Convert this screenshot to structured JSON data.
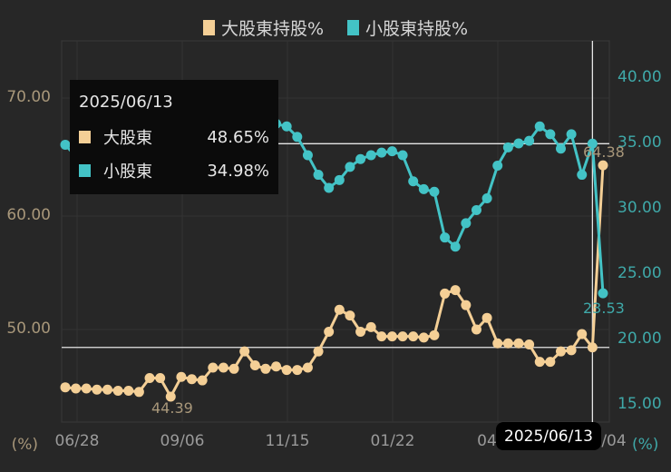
{
  "legend": {
    "items": [
      {
        "label": "大股東持股%",
        "color": "#f4cf96"
      },
      {
        "label": "小股東持股%",
        "color": "#43c3c6"
      }
    ]
  },
  "axes": {
    "left": {
      "ticks": [
        "70.00",
        "60.00",
        "50.00"
      ],
      "unit": "(%)",
      "color": "#a8977a"
    },
    "right": {
      "ticks": [
        "40.00",
        "35.00",
        "30.00",
        "25.00",
        "20.00",
        "15.00"
      ],
      "unit": "(%)",
      "color": "#3fa9a9"
    },
    "x": {
      "ticks": [
        "06/28",
        "09/06",
        "11/15",
        "01/22",
        "04",
        "/04"
      ]
    }
  },
  "tooltip": {
    "date": "2025/06/13",
    "rows": [
      {
        "label": "大股東",
        "value": "48.65%"
      },
      {
        "label": "小股東",
        "value": "34.98%"
      }
    ]
  },
  "crosshair": {
    "x_label": "2025/06/13"
  },
  "annotations": {
    "min_major": "44.39",
    "last_major": "64.38",
    "last_minor": "23.53"
  },
  "chart_data": {
    "type": "line",
    "title": "",
    "legend_position": "top",
    "x_ticks": [
      "06/28",
      "09/06",
      "11/15",
      "01/22",
      "04/..",
      "../04"
    ],
    "grid": true,
    "series": [
      {
        "name": "大股東持股%",
        "axis": "left",
        "ylim": [
          42,
          73
        ],
        "color": "#f4cf96",
        "values": [
          45.2,
          45.1,
          45.1,
          45.0,
          45.0,
          44.9,
          44.9,
          44.8,
          46.0,
          46.0,
          44.39,
          46.1,
          45.9,
          45.8,
          46.9,
          46.9,
          46.8,
          48.3,
          47.1,
          46.8,
          47.0,
          46.7,
          46.7,
          46.9,
          48.3,
          50.0,
          51.9,
          51.4,
          50.0,
          50.4,
          49.6,
          49.6,
          49.6,
          49.6,
          49.5,
          49.7,
          53.3,
          53.6,
          52.3,
          50.2,
          51.2,
          49.0,
          49.0,
          49.0,
          48.9,
          47.4,
          47.4,
          48.3,
          48.4,
          49.8,
          48.65,
          64.38
        ]
      },
      {
        "name": "小股東持股%",
        "axis": "right",
        "ylim": [
          13.5,
          41
        ],
        "color": "#43c3c6",
        "values": [
          34.9,
          34.0,
          34.7,
          35.3,
          35.8,
          36.3,
          35.9,
          36.3,
          36.6,
          36.8,
          35.6,
          34.6,
          33.4,
          33.6,
          34.7,
          35.0,
          36.1,
          36.1,
          36.4,
          36.9,
          36.5,
          36.3,
          35.5,
          34.1,
          32.6,
          31.6,
          32.2,
          33.2,
          33.8,
          34.1,
          34.3,
          34.4,
          34.1,
          32.1,
          31.5,
          31.3,
          27.8,
          27.1,
          28.9,
          29.9,
          30.8,
          33.3,
          34.7,
          35.0,
          35.2,
          36.3,
          35.7,
          34.6,
          35.7,
          32.6,
          34.98,
          23.53
        ]
      }
    ],
    "reference_lines": [
      {
        "axis": "left",
        "value": 48.65
      },
      {
        "axis": "right",
        "value": 34.98
      },
      {
        "axis": "x",
        "label": "2025/06/13"
      }
    ]
  }
}
